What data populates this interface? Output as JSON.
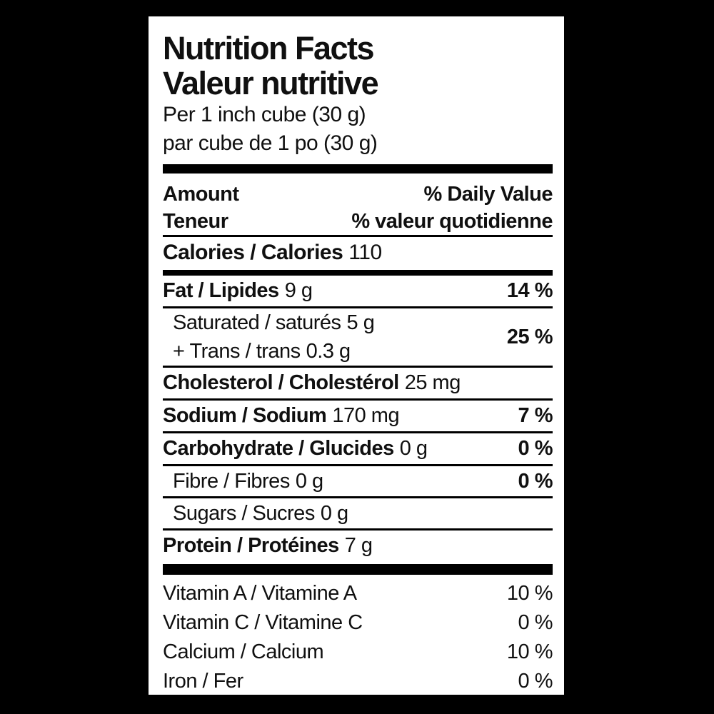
{
  "colors": {
    "background": "#000000",
    "label_background": "#ffffff",
    "text": "#101010"
  },
  "label": {
    "title_en": "Nutrition Facts",
    "title_fr": "Valeur nutritive",
    "serving_en": "Per 1 inch cube (30 g)",
    "serving_fr": "par cube de 1 po (30 g)",
    "header": {
      "amount_en": "Amount",
      "daily_value_en": "% Daily Value",
      "amount_fr": "Teneur",
      "daily_value_fr": "% valeur quotidienne"
    },
    "calories": {
      "name": "Calories / Calories",
      "value": "110"
    },
    "nutrients": {
      "fat": {
        "name": "Fat / Lipides",
        "amount": "9 g",
        "dv": "14 %"
      },
      "saturated": {
        "name": "Saturated / saturés",
        "amount": "5 g"
      },
      "trans": {
        "name": "+ Trans / trans",
        "amount": "0.3 g"
      },
      "saturated_trans_dv": "25 %",
      "cholesterol": {
        "name": "Cholesterol / Cholestérol",
        "amount": "25 mg"
      },
      "sodium": {
        "name": "Sodium / Sodium",
        "amount": "170 mg",
        "dv": "7 %"
      },
      "carbohydrate": {
        "name": "Carbohydrate / Glucides",
        "amount": "0 g",
        "dv": "0 %"
      },
      "fibre": {
        "name": "Fibre / Fibres",
        "amount": "0 g",
        "dv": "0 %"
      },
      "sugars": {
        "name": "Sugars / Sucres",
        "amount": "0 g"
      },
      "protein": {
        "name": "Protein / Protéines",
        "amount": "7 g"
      }
    },
    "micronutrients": [
      {
        "name": "Vitamin A / Vitamine A",
        "dv": "10 %"
      },
      {
        "name": "Vitamin C / Vitamine C",
        "dv": "0 %"
      },
      {
        "name": "Calcium / Calcium",
        "dv": "10 %"
      },
      {
        "name": "Iron / Fer",
        "dv": "0 %"
      }
    ]
  }
}
